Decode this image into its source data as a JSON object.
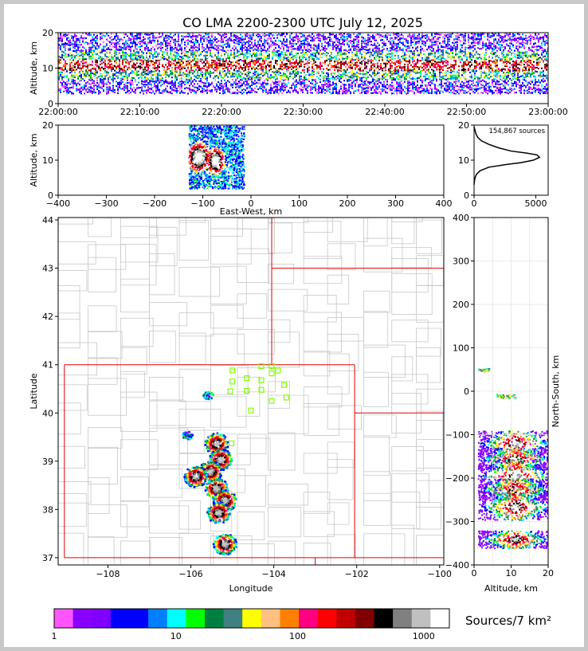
{
  "title": "CO LMA 2200-2300 UTC July 12, 2025",
  "colors": {
    "state_border": "#dd0000",
    "county_border": "#c8c8c8",
    "station": "#7fff00"
  },
  "chart_data": [
    {
      "id": "time_height",
      "type": "heatmap",
      "ylabel": "Altitude, km",
      "ylim": [
        0,
        20
      ],
      "yticks": [
        "0",
        "10",
        "20"
      ],
      "xlim_labels": [
        "22:00:00",
        "23:00:00"
      ],
      "xticks": [
        "22:00:00",
        "22:10:00",
        "22:20:00",
        "22:30:00",
        "22:40:00",
        "22:50:00",
        "23:00:00"
      ]
    },
    {
      "id": "ew_alt",
      "type": "heatmap",
      "xlabel": "East-West, km",
      "ylabel": "Altitude, km",
      "xlim": [
        -400,
        400
      ],
      "ylim": [
        0,
        20
      ],
      "xticks": [
        "−400",
        "−300",
        "−200",
        "−100",
        "0",
        "100",
        "200",
        "300",
        "400"
      ],
      "yticks": [
        "0",
        "10",
        "20"
      ],
      "cores": [
        {
          "x": -110,
          "y": 11,
          "w": 50,
          "h": 9
        },
        {
          "x": -75,
          "y": 10,
          "w": 40,
          "h": 8
        },
        {
          "x": -118,
          "y": 10,
          "w": 20,
          "h": 4
        }
      ]
    },
    {
      "id": "alt_histogram",
      "type": "line",
      "annotation": "154,867 sources",
      "xlim": [
        0,
        6000
      ],
      "ylim": [
        0,
        20
      ],
      "xticks": [
        "0",
        "5000"
      ],
      "yticks": [
        "0",
        "10",
        "20"
      ],
      "x": [
        0,
        30,
        80,
        200,
        500,
        1200,
        2500,
        3800,
        4800,
        5300,
        5100,
        4300,
        3000,
        2000,
        1200,
        600,
        300,
        150,
        80,
        0
      ],
      "y": [
        3,
        4,
        5,
        6,
        7,
        8,
        8.7,
        9.3,
        10,
        10.8,
        11.5,
        12,
        12.6,
        13.5,
        14.5,
        15.5,
        16.5,
        17.5,
        18.5,
        19.5
      ]
    },
    {
      "id": "plan_map",
      "type": "scatter",
      "xlabel": "Longitude",
      "ylabel": "Latitude",
      "xlim": [
        -109.2,
        -99.9
      ],
      "ylim": [
        36.85,
        44.05
      ],
      "xticks": [
        "−108",
        "−106",
        "−104",
        "−102",
        "−100"
      ],
      "yticks": [
        "37",
        "38",
        "39",
        "40",
        "41",
        "42",
        "43",
        "44"
      ],
      "stations": [
        [
          -105.0,
          40.88
        ],
        [
          -104.3,
          40.97
        ],
        [
          -104.05,
          40.97
        ],
        [
          -103.9,
          40.88
        ],
        [
          -104.05,
          40.82
        ],
        [
          -104.65,
          40.72
        ],
        [
          -104.3,
          40.68
        ],
        [
          -105.0,
          40.65
        ],
        [
          -103.75,
          40.58
        ],
        [
          -104.3,
          40.48
        ],
        [
          -104.65,
          40.46
        ],
        [
          -105.05,
          40.45
        ],
        [
          -103.7,
          40.32
        ],
        [
          -104.05,
          40.25
        ],
        [
          -104.55,
          40.05
        ],
        [
          -105.02,
          39.37
        ]
      ],
      "storm_cores": [
        [
          -105.4,
          39.38
        ],
        [
          -105.3,
          39.05
        ],
        [
          -105.55,
          38.8
        ],
        [
          -105.9,
          38.7
        ],
        [
          -105.4,
          38.45
        ],
        [
          -105.2,
          38.2
        ],
        [
          -105.35,
          37.95
        ],
        [
          -105.2,
          37.3
        ],
        [
          -106.1,
          39.55
        ],
        [
          -105.6,
          40.38
        ]
      ]
    },
    {
      "id": "ns_alt",
      "type": "heatmap",
      "xlabel": "Altitude, km",
      "ylabel": "North-South, km",
      "xlim": [
        0,
        20
      ],
      "ylim": [
        -400,
        400
      ],
      "xticks": [
        "0",
        "10",
        "20"
      ],
      "yticks": [
        "−400",
        "−300",
        "−200",
        "−100",
        "0",
        "100",
        "200",
        "300",
        "400"
      ],
      "bands": [
        {
          "y": -120,
          "h": 30
        },
        {
          "y": -155,
          "h": 25
        },
        {
          "y": -195,
          "h": 40
        },
        {
          "y": -225,
          "h": 25
        },
        {
          "y": -265,
          "h": 30
        },
        {
          "y": -340,
          "h": 20
        },
        {
          "y": 50,
          "h": 3
        },
        {
          "y": -10,
          "h": 4
        }
      ]
    }
  ],
  "colorbar": {
    "label": "Sources/7 km²",
    "ticks": [
      "1",
      "10",
      "100",
      "1000"
    ],
    "colors": [
      "#ff55ff",
      "#8a00ff",
      "#8000ff",
      "#0000ff",
      "#0000ff",
      "#0080ff",
      "#00ffff",
      "#00ff00",
      "#008040",
      "#3f8080",
      "#ffff00",
      "#ffc080",
      "#ff8000",
      "#ff0080",
      "#ff0000",
      "#c00000",
      "#800000",
      "#000000",
      "#808080",
      "#c0c0c0",
      "#ffffff"
    ]
  }
}
